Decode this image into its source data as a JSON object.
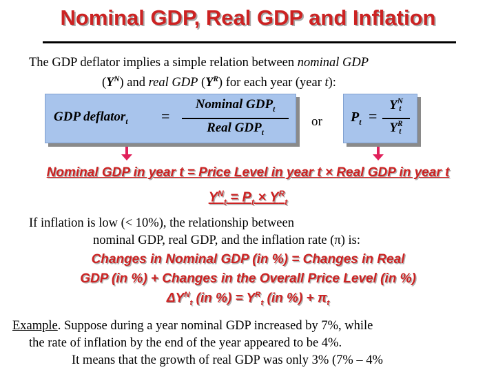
{
  "title": "Nominal GDP, Real GDP and Inflation",
  "intro": {
    "line1_a": "The GDP deflator implies a simple relation between ",
    "line1_b": "nominal GDP",
    "line2_a": "(",
    "line2_yn": "Y",
    "line2_n": "N",
    "line2_b": ") and ",
    "line2_c": "real GDP",
    "line2_d": " (",
    "line2_yr": "Y",
    "line2_r": "R",
    "line2_e": ") for each year (year ",
    "line2_t": "t",
    "line2_f": "):"
  },
  "formula1": {
    "lhs": "GDP deflator",
    "lhs_sub": "t",
    "eq": "=",
    "num": "Nominal GDP",
    "num_sub": "t",
    "den": "Real GDP",
    "den_sub": "t"
  },
  "or_label": "or",
  "formula2": {
    "lhs": "P",
    "lhs_sub": "t",
    "eq": "=",
    "num": "Y",
    "num_sup": "N",
    "num_sub": "t",
    "den": "Y",
    "den_sup": "R",
    "den_sub": "t"
  },
  "relation_text": "Nominal GDP in year t = Price Level in year t × Real GDP in year t",
  "relation_symbolic": {
    "a": "Y",
    "a_sup": "N",
    "a_sub": "t",
    "eq": " = P",
    "b_sub": "t",
    "times": " × Y",
    "c_sup": "R",
    "c_sub": "t"
  },
  "inflation_para": {
    "line1": "If inflation is low (< 10%), the relationship between",
    "line2": "nominal GDP, real GDP, and the inflation rate (π) is:"
  },
  "changes": {
    "line1": "Changes in Nominal GDP (in %) = Changes in Real",
    "line2": "GDP (in %) + Changes in the Overall Price Level (in %)",
    "l3_a": "ΔY",
    "l3_a_sup": "N",
    "l3_a_sub": "t",
    "l3_b": " (in %) = Y",
    "l3_b_sup": "R",
    "l3_b_sub": "t",
    "l3_c": " (in %) + π",
    "l3_c_sub": "t"
  },
  "example": {
    "label": "Example",
    "line1": ". Suppose during a year nominal GDP increased by 7%, while",
    "line2": "the rate of inflation by the end of the year appeared to be 4%.",
    "line3": "It means that the growth of real GDP was only 3% (7% – 4%"
  }
}
